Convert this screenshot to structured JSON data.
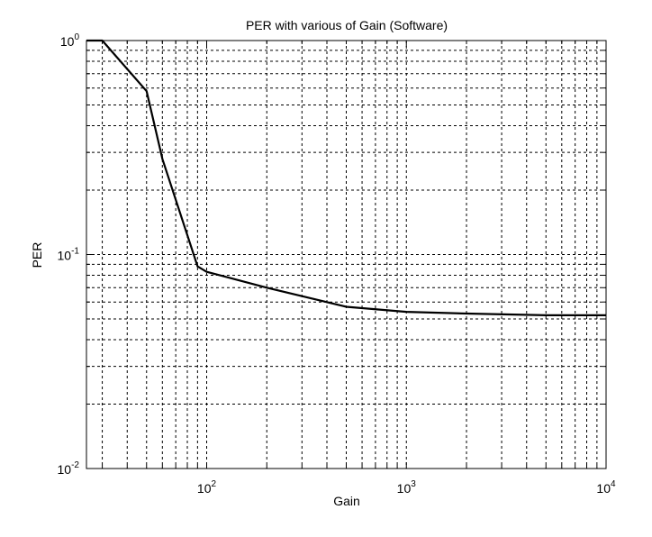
{
  "chart_data": {
    "type": "line",
    "title": "PER with various of Gain (Software)",
    "xlabel": "Gain",
    "ylabel": "PER",
    "xscale": "log",
    "yscale": "log",
    "xlim": [
      25,
      10000
    ],
    "ylim": [
      0.01,
      1
    ],
    "grid": true,
    "grid_style": "dashed",
    "legend": "none",
    "x_ticks": [
      {
        "value": 100,
        "base": "10",
        "exp": "2"
      },
      {
        "value": 1000,
        "base": "10",
        "exp": "3"
      },
      {
        "value": 10000,
        "base": "10",
        "exp": "4"
      }
    ],
    "y_ticks": [
      {
        "value": 0.01,
        "base": "10",
        "exp": "-2"
      },
      {
        "value": 0.1,
        "base": "10",
        "exp": "-1"
      },
      {
        "value": 1,
        "base": "10",
        "exp": "0"
      }
    ],
    "series": [
      {
        "color": "#000000",
        "x": [
          30,
          50,
          60,
          90,
          100,
          200,
          500,
          1000,
          2000,
          5000,
          10000
        ],
        "y": [
          1.0,
          0.58,
          0.28,
          0.088,
          0.083,
          0.07,
          0.057,
          0.054,
          0.053,
          0.052,
          0.052
        ]
      }
    ]
  }
}
